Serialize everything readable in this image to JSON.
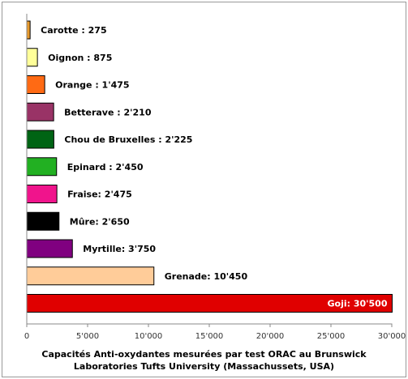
{
  "chart_data": {
    "type": "bar",
    "orientation": "horizontal",
    "title_lines": [
      "Capacités Anti-oxydantes mesurées par test ORAC au Brunswick",
      "Laboratories Tufts University (Massachussets, USA)"
    ],
    "xlim": [
      0,
      30000
    ],
    "x_ticks": [
      0,
      5000,
      10000,
      15000,
      20000,
      25000,
      30000
    ],
    "x_tick_labels": [
      "0",
      "5'000",
      "10'000",
      "15'000",
      "20'000",
      "25'000",
      "30'000"
    ],
    "grid": false,
    "bars": [
      {
        "label": "Carotte : 275",
        "value": 275,
        "color": "#e89a2c"
      },
      {
        "label": "Oignon : 875",
        "value": 875,
        "color": "#ffff99"
      },
      {
        "label": "Orange : 1'475",
        "value": 1475,
        "color": "#ff6a14"
      },
      {
        "label": "Betterave : 2'210",
        "value": 2210,
        "color": "#993366"
      },
      {
        "label": "Chou de Bruxelles : 2'225",
        "value": 2225,
        "color": "#006414"
      },
      {
        "label": "Epinard : 2'450",
        "value": 2450,
        "color": "#22b022"
      },
      {
        "label": "Fraise: 2'475",
        "value": 2475,
        "color": "#f0148c"
      },
      {
        "label": "Mûre: 2'650",
        "value": 2650,
        "color": "#000000"
      },
      {
        "label": "Myrtille: 3'750",
        "value": 3750,
        "color": "#800080"
      },
      {
        "label": "Grenade: 10'450",
        "value": 10450,
        "color": "#ffcc99"
      },
      {
        "label": "Goji: 30'500",
        "value": 30500,
        "color": "#e00000",
        "label_color": "#ffffff",
        "label_inside": true
      }
    ]
  }
}
